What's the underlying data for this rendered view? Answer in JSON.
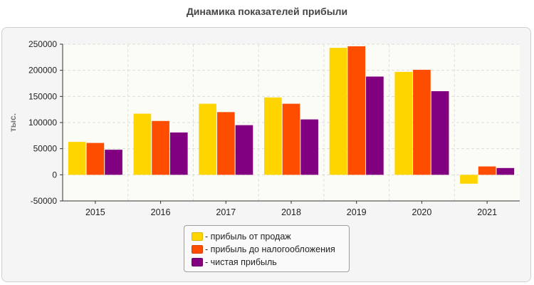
{
  "chart_data": {
    "type": "bar",
    "title": "Динамика показателей прибыли",
    "ylabel": "тыс.",
    "xlabel": "",
    "categories": [
      "2015",
      "2016",
      "2017",
      "2018",
      "2019",
      "2020",
      "2021"
    ],
    "ylim": [
      -50000,
      250000
    ],
    "yticks": [
      "250000",
      "200000",
      "150000",
      "100000",
      "50000",
      "0",
      "-50000"
    ],
    "grid": true,
    "legend_position": "bottom-center",
    "series": [
      {
        "name": "прибыль от продаж",
        "color": "#ffd500",
        "values": [
          63000,
          117000,
          136000,
          148000,
          243000,
          197000,
          -17000
        ]
      },
      {
        "name": "прибыль до налогообложения",
        "color": "#ff4d00",
        "values": [
          61000,
          103000,
          120000,
          136000,
          246000,
          201000,
          16000
        ]
      },
      {
        "name": "чистая прибыль",
        "color": "#800080",
        "values": [
          48000,
          81000,
          95000,
          106000,
          188000,
          160000,
          13000
        ]
      }
    ]
  },
  "legend": {
    "items": [
      {
        "label": "- прибыль от продаж",
        "color": "#ffd500"
      },
      {
        "label": "- прибыль до налогообложения",
        "color": "#ff4d00"
      },
      {
        "label": "- чистая прибыль",
        "color": "#800080"
      }
    ]
  }
}
